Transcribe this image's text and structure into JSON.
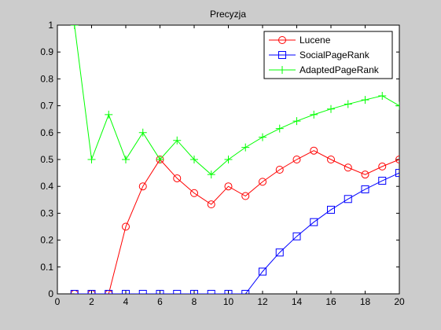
{
  "chart_data": {
    "type": "line",
    "title": "Precyzja",
    "xlabel": "",
    "ylabel": "",
    "xlim": [
      0,
      20
    ],
    "ylim": [
      0,
      1
    ],
    "xticks": [
      "0",
      "2",
      "4",
      "6",
      "8",
      "10",
      "12",
      "14",
      "16",
      "18",
      "20"
    ],
    "yticks": [
      "0",
      "0.1",
      "0.2",
      "0.3",
      "0.4",
      "0.5",
      "0.6",
      "0.7",
      "0.8",
      "0.9",
      "1"
    ],
    "grid": false,
    "legend_position": "top-right",
    "x": [
      1,
      2,
      3,
      4,
      5,
      6,
      7,
      8,
      9,
      10,
      11,
      12,
      13,
      14,
      15,
      16,
      17,
      18,
      19,
      20
    ],
    "series": [
      {
        "name": "Lucene",
        "color": "#ff0000",
        "marker": "circle",
        "values": [
          0,
          0,
          0,
          0.25,
          0.4,
          0.5,
          0.43,
          0.375,
          0.333,
          0.4,
          0.364,
          0.417,
          0.462,
          0.5,
          0.533,
          0.5,
          0.47,
          0.444,
          0.474,
          0.5
        ]
      },
      {
        "name": "SocialPageRank",
        "color": "#0000ff",
        "marker": "square",
        "values": [
          0,
          0,
          0,
          0,
          0,
          0,
          0,
          0,
          0,
          0,
          0,
          0.083,
          0.154,
          0.214,
          0.267,
          0.313,
          0.353,
          0.389,
          0.421,
          0.45
        ]
      },
      {
        "name": "AdaptedPageRank",
        "color": "#00ff00",
        "marker": "plus",
        "values": [
          1,
          0.5,
          0.667,
          0.5,
          0.6,
          0.5,
          0.571,
          0.5,
          0.444,
          0.5,
          0.545,
          0.583,
          0.615,
          0.643,
          0.667,
          0.688,
          0.706,
          0.722,
          0.737,
          0.7
        ]
      }
    ]
  }
}
